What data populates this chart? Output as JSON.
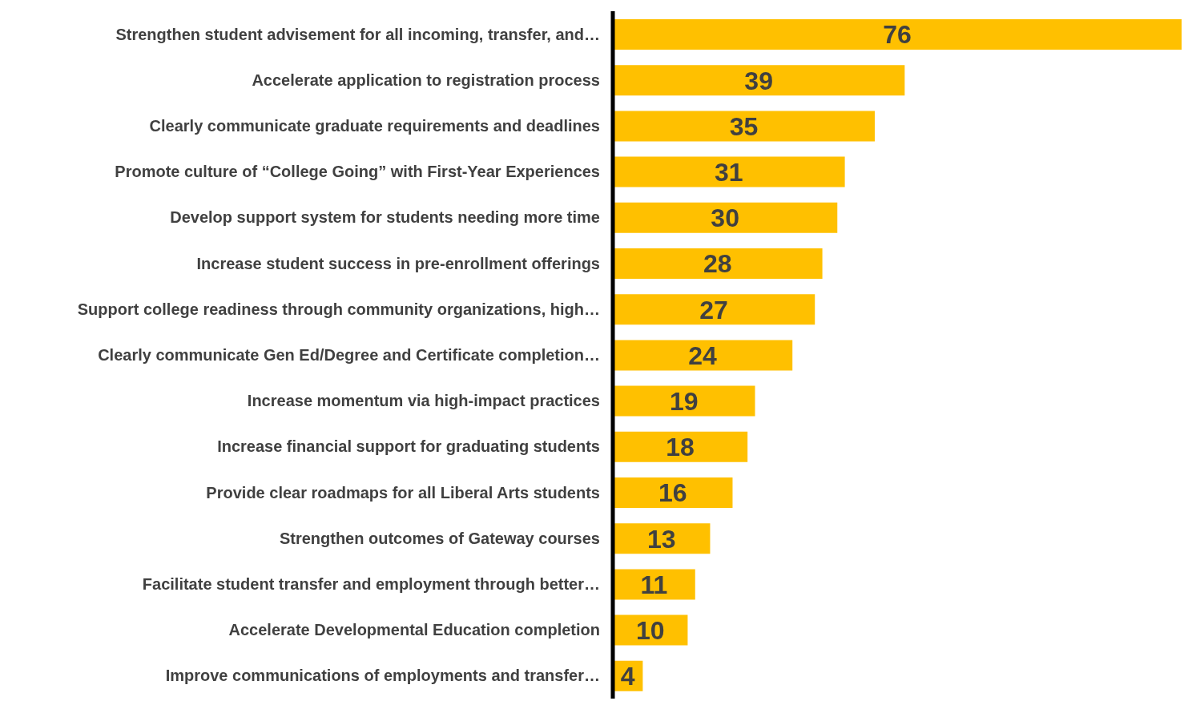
{
  "chart_data": {
    "type": "bar",
    "orientation": "horizontal",
    "data_labels": true,
    "color": "#ffc000",
    "categories": [
      "Strengthen student advisement for all incoming, transfer, and…",
      "Accelerate application to registration process",
      "Clearly communicate graduate requirements and deadlines",
      "Promote culture of “College Going” with First-Year Experiences",
      "Develop support system for students needing more time",
      "Increase student success in pre-enrollment offerings",
      "Support college readiness through community organizations, high…",
      "Clearly communicate Gen Ed/Degree and Certificate completion…",
      "Increase momentum via high-impact practices",
      "Increase financial support for graduating students",
      "Provide clear roadmaps for all Liberal Arts students",
      "Strengthen outcomes of Gateway courses",
      "Facilitate student transfer and employment through better…",
      "Accelerate Developmental Education completion",
      "Improve communications of employments and transfer…"
    ],
    "values": [
      76,
      39,
      35,
      31,
      30,
      28,
      27,
      24,
      19,
      18,
      16,
      13,
      11,
      10,
      4
    ]
  }
}
